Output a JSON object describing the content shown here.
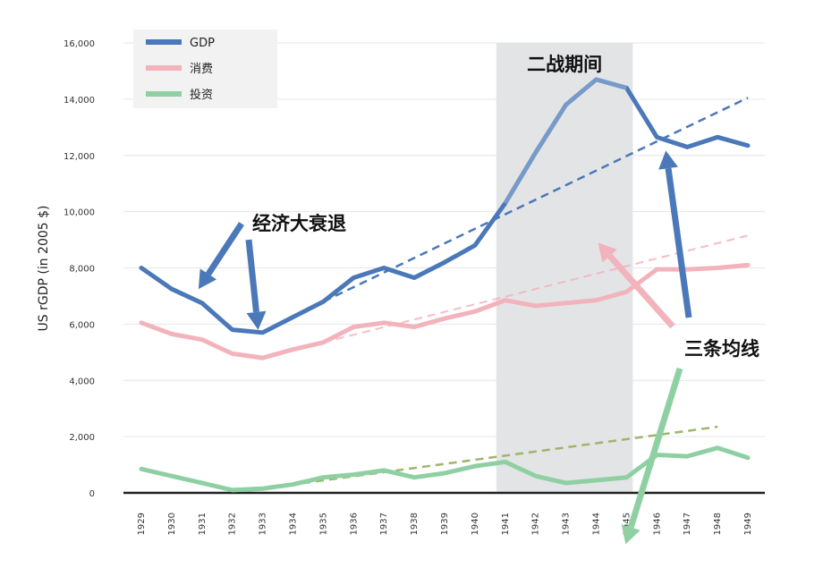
{
  "chart_data": {
    "type": "line",
    "ylabel": "US rGDP (in 2005 $)",
    "ylim": [
      0,
      16000
    ],
    "yticks": [
      0,
      2000,
      4000,
      6000,
      8000,
      10000,
      12000,
      14000,
      16000
    ],
    "ytick_labels": [
      "0",
      "2,000",
      "4,000",
      "6,000",
      "8,000",
      "10,000",
      "12,000",
      "14,000",
      "16,000"
    ],
    "x": [
      1929,
      1930,
      1931,
      1932,
      1933,
      1934,
      1935,
      1936,
      1937,
      1938,
      1939,
      1940,
      1941,
      1942,
      1943,
      1944,
      1945,
      1946,
      1947,
      1948,
      1949
    ],
    "grid": true,
    "legend_position": "top-left",
    "series": [
      {
        "name": "GDP",
        "color": "#4a78b8",
        "values": [
          8000,
          7250,
          6750,
          5800,
          5700,
          6250,
          6800,
          7650,
          8000,
          7650,
          8200,
          8800,
          10300,
          12100,
          13800,
          14700,
          14400,
          12650,
          12300,
          12650,
          12350
        ]
      },
      {
        "name": "消费",
        "color": "#f2b3bc",
        "values": [
          6050,
          5650,
          5450,
          4950,
          4800,
          5100,
          5350,
          5900,
          6050,
          5900,
          6200,
          6450,
          6850,
          6650,
          6750,
          6850,
          7150,
          7950,
          7950,
          8000,
          8100
        ]
      },
      {
        "name": "投资",
        "color": "#8fd0a3",
        "values": [
          850,
          600,
          350,
          100,
          150,
          300,
          550,
          650,
          800,
          550,
          700,
          950,
          1100,
          600,
          350,
          450,
          550,
          1350,
          1300,
          1600,
          1250
        ]
      }
    ],
    "trendlines": [
      {
        "series": "GDP",
        "color": "#4a78b8",
        "from": [
          1935,
          6800
        ],
        "to": [
          1949,
          14050
        ]
      },
      {
        "series": "消费",
        "color": "#f2b3bc",
        "from": [
          1935,
          5350
        ],
        "to": [
          1949,
          9150
        ]
      },
      {
        "series": "投资",
        "color": "#9bb76a",
        "from": [
          1933,
          150
        ],
        "to": [
          1948,
          2350
        ]
      }
    ],
    "shaded_region": {
      "from": 1941,
      "to": 1945,
      "label": "二战期间"
    },
    "annotations": [
      {
        "text": "经济大衰退",
        "arrows": [
          {
            "series": "GDP",
            "x": 1930,
            "color": "#4a78b8"
          },
          {
            "series": "GDP",
            "x": 1933,
            "color": "#4a78b8"
          }
        ]
      },
      {
        "text": "三条均线",
        "arrows": [
          {
            "series": "GDP",
            "x": 1946,
            "color": "#4a78b8"
          },
          {
            "series": "消费",
            "x": 1945,
            "color": "#f2b3bc"
          },
          {
            "series": "投资",
            "x": 1946,
            "color": "#8fd0a3"
          }
        ]
      }
    ]
  }
}
